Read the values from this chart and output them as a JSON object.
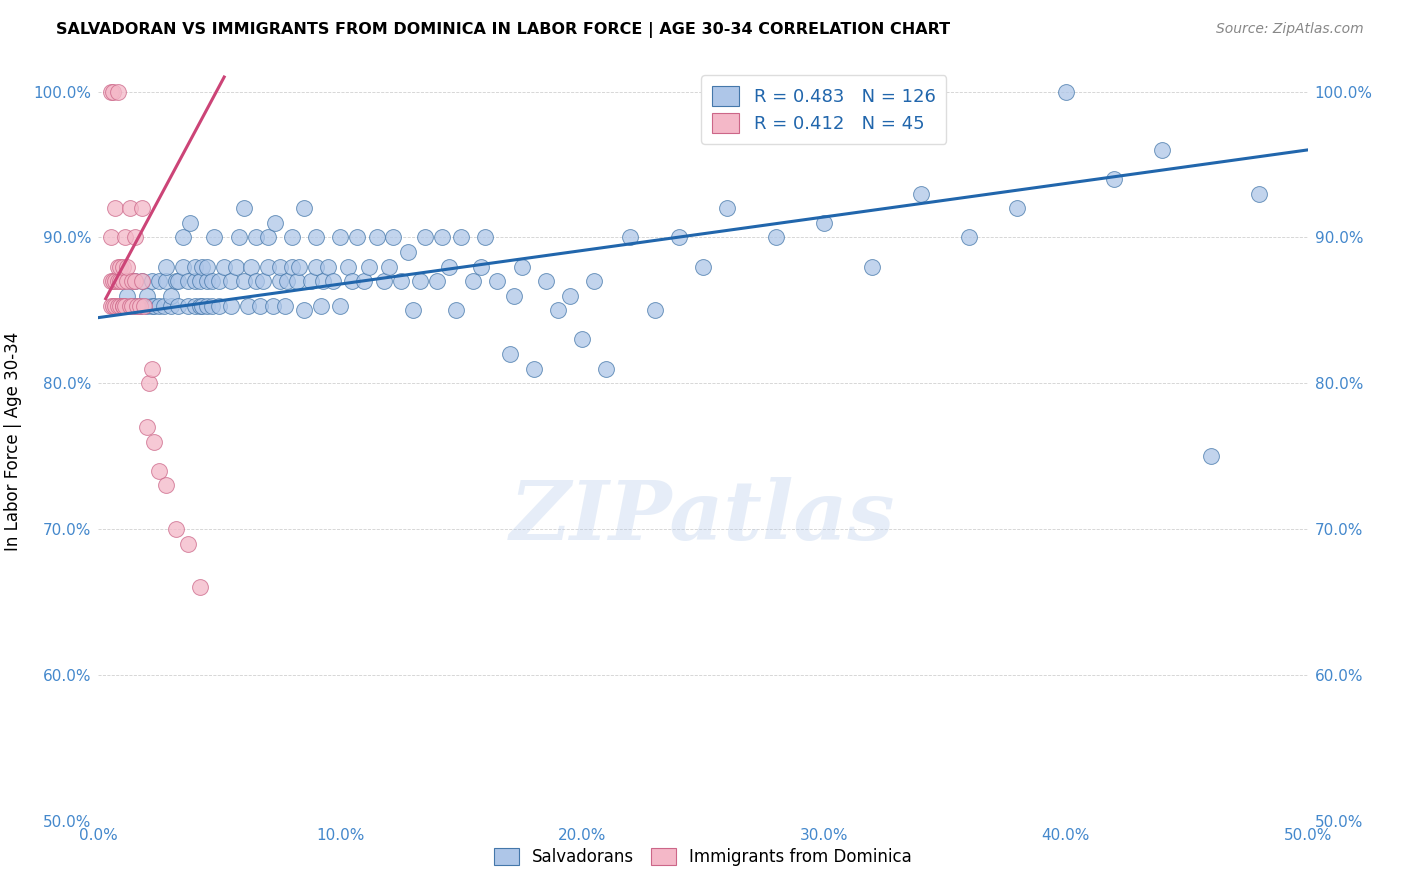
{
  "title": "SALVADORAN VS IMMIGRANTS FROM DOMINICA IN LABOR FORCE | AGE 30-34 CORRELATION CHART",
  "source": "Source: ZipAtlas.com",
  "ylabel": "In Labor Force | Age 30-34",
  "x_min": 0.0,
  "x_max": 0.5,
  "y_min": 0.5,
  "y_max": 1.02,
  "x_ticks": [
    0.0,
    0.1,
    0.2,
    0.3,
    0.4,
    0.5
  ],
  "x_tick_labels": [
    "0.0%",
    "10.0%",
    "20.0%",
    "30.0%",
    "40.0%",
    "50.0%"
  ],
  "y_ticks": [
    0.5,
    0.6,
    0.7,
    0.8,
    0.9,
    1.0
  ],
  "y_tick_labels": [
    "50.0%",
    "60.0%",
    "70.0%",
    "80.0%",
    "90.0%",
    "100.0%"
  ],
  "legend_r_blue": "0.483",
  "legend_n_blue": "126",
  "legend_r_pink": "0.412",
  "legend_n_pink": "45",
  "blue_color": "#aec6e8",
  "blue_edge_color": "#4477aa",
  "blue_line_color": "#2166ac",
  "pink_color": "#f4b8c8",
  "pink_edge_color": "#cc6688",
  "pink_line_color": "#cc4477",
  "tick_color": "#4488cc",
  "watermark": "ZIPatlas",
  "blue_line_x0": 0.0,
  "blue_line_x1": 0.5,
  "blue_line_y0": 0.845,
  "blue_line_y1": 0.96,
  "pink_line_x0": 0.003,
  "pink_line_x1": 0.052,
  "pink_line_y0": 0.858,
  "pink_line_y1": 1.01,
  "blue_scatter_x": [
    0.01,
    0.012,
    0.015,
    0.015,
    0.017,
    0.018,
    0.02,
    0.02,
    0.022,
    0.022,
    0.023,
    0.025,
    0.025,
    0.027,
    0.028,
    0.028,
    0.03,
    0.03,
    0.032,
    0.033,
    0.033,
    0.035,
    0.035,
    0.037,
    0.037,
    0.038,
    0.04,
    0.04,
    0.04,
    0.042,
    0.042,
    0.043,
    0.043,
    0.045,
    0.045,
    0.045,
    0.047,
    0.047,
    0.048,
    0.05,
    0.05,
    0.052,
    0.055,
    0.055,
    0.057,
    0.058,
    0.06,
    0.06,
    0.062,
    0.063,
    0.065,
    0.065,
    0.067,
    0.068,
    0.07,
    0.07,
    0.072,
    0.073,
    0.075,
    0.075,
    0.077,
    0.078,
    0.08,
    0.08,
    0.082,
    0.083,
    0.085,
    0.085,
    0.088,
    0.09,
    0.09,
    0.092,
    0.093,
    0.095,
    0.097,
    0.1,
    0.1,
    0.103,
    0.105,
    0.107,
    0.11,
    0.112,
    0.115,
    0.118,
    0.12,
    0.122,
    0.125,
    0.128,
    0.13,
    0.133,
    0.135,
    0.14,
    0.142,
    0.145,
    0.148,
    0.15,
    0.155,
    0.158,
    0.16,
    0.165,
    0.17,
    0.172,
    0.175,
    0.18,
    0.185,
    0.19,
    0.195,
    0.2,
    0.205,
    0.21,
    0.22,
    0.23,
    0.24,
    0.25,
    0.26,
    0.28,
    0.3,
    0.32,
    0.34,
    0.36,
    0.38,
    0.4,
    0.42,
    0.44,
    0.46,
    0.48
  ],
  "blue_scatter_y": [
    0.853,
    0.86,
    0.853,
    0.87,
    0.853,
    0.87,
    0.853,
    0.86,
    0.853,
    0.87,
    0.853,
    0.853,
    0.87,
    0.853,
    0.87,
    0.88,
    0.853,
    0.86,
    0.87,
    0.853,
    0.87,
    0.88,
    0.9,
    0.853,
    0.87,
    0.91,
    0.853,
    0.87,
    0.88,
    0.853,
    0.87,
    0.853,
    0.88,
    0.853,
    0.87,
    0.88,
    0.853,
    0.87,
    0.9,
    0.853,
    0.87,
    0.88,
    0.87,
    0.853,
    0.88,
    0.9,
    0.92,
    0.87,
    0.853,
    0.88,
    0.87,
    0.9,
    0.853,
    0.87,
    0.88,
    0.9,
    0.853,
    0.91,
    0.87,
    0.88,
    0.853,
    0.87,
    0.88,
    0.9,
    0.87,
    0.88,
    0.85,
    0.92,
    0.87,
    0.88,
    0.9,
    0.853,
    0.87,
    0.88,
    0.87,
    0.9,
    0.853,
    0.88,
    0.87,
    0.9,
    0.87,
    0.88,
    0.9,
    0.87,
    0.88,
    0.9,
    0.87,
    0.89,
    0.85,
    0.87,
    0.9,
    0.87,
    0.9,
    0.88,
    0.85,
    0.9,
    0.87,
    0.88,
    0.9,
    0.87,
    0.82,
    0.86,
    0.88,
    0.81,
    0.87,
    0.85,
    0.86,
    0.83,
    0.87,
    0.81,
    0.9,
    0.85,
    0.9,
    0.88,
    0.92,
    0.9,
    0.91,
    0.88,
    0.93,
    0.9,
    0.92,
    1.0,
    0.94,
    0.96,
    0.75,
    0.93
  ],
  "pink_scatter_x": [
    0.005,
    0.005,
    0.005,
    0.005,
    0.006,
    0.006,
    0.006,
    0.007,
    0.007,
    0.007,
    0.008,
    0.008,
    0.008,
    0.008,
    0.009,
    0.009,
    0.009,
    0.01,
    0.01,
    0.01,
    0.01,
    0.011,
    0.011,
    0.012,
    0.012,
    0.013,
    0.013,
    0.014,
    0.014,
    0.015,
    0.015,
    0.016,
    0.017,
    0.018,
    0.018,
    0.019,
    0.02,
    0.021,
    0.022,
    0.023,
    0.025,
    0.028,
    0.032,
    0.037,
    0.042
  ],
  "pink_scatter_y": [
    0.853,
    0.87,
    0.9,
    1.0,
    0.853,
    0.87,
    1.0,
    0.853,
    0.87,
    0.92,
    0.853,
    0.87,
    0.88,
    1.0,
    0.853,
    0.87,
    0.88,
    0.853,
    0.87,
    0.853,
    0.88,
    0.853,
    0.9,
    0.87,
    0.88,
    0.853,
    0.92,
    0.87,
    0.853,
    0.9,
    0.87,
    0.853,
    0.853,
    0.87,
    0.92,
    0.853,
    0.77,
    0.8,
    0.81,
    0.76,
    0.74,
    0.73,
    0.7,
    0.69,
    0.66
  ]
}
